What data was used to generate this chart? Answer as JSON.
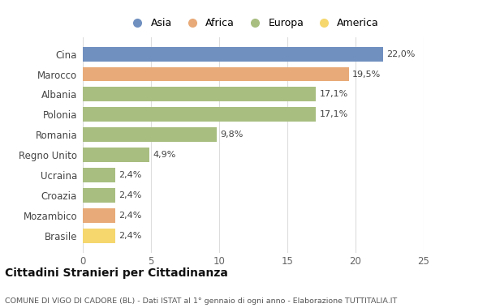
{
  "categories": [
    "Brasile",
    "Mozambico",
    "Croazia",
    "Ucraina",
    "Regno Unito",
    "Romania",
    "Polonia",
    "Albania",
    "Marocco",
    "Cina"
  ],
  "values": [
    2.4,
    2.4,
    2.4,
    2.4,
    4.9,
    9.8,
    17.1,
    17.1,
    19.5,
    22.0
  ],
  "colors": [
    "#f5d76e",
    "#e8aa78",
    "#a8be80",
    "#a8be80",
    "#a8be80",
    "#a8be80",
    "#a8be80",
    "#a8be80",
    "#e8aa78",
    "#7090c0"
  ],
  "labels": [
    "2,4%",
    "2,4%",
    "2,4%",
    "2,4%",
    "4,9%",
    "9,8%",
    "17,1%",
    "17,1%",
    "19,5%",
    "22,0%"
  ],
  "legend_labels": [
    "Asia",
    "Africa",
    "Europa",
    "America"
  ],
  "legend_colors": [
    "#7090c0",
    "#e8aa78",
    "#a8be80",
    "#f5d76e"
  ],
  "title": "Cittadini Stranieri per Cittadinanza",
  "subtitle": "COMUNE DI VIGO DI CADORE (BL) - Dati ISTAT al 1° gennaio di ogni anno - Elaborazione TUTTITALIA.IT",
  "xlim": [
    0,
    25
  ],
  "xticks": [
    0,
    5,
    10,
    15,
    20,
    25
  ],
  "bg_color": "#ffffff",
  "plot_bg_color": "#ffffff"
}
